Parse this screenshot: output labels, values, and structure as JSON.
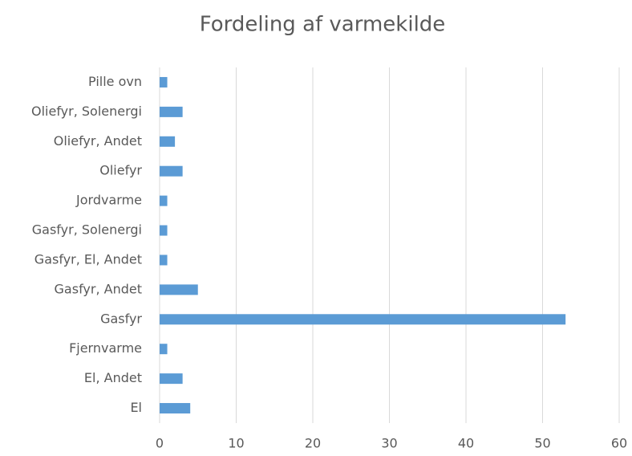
{
  "chart_data": {
    "type": "barh",
    "title": "Fordeling af varmekilde",
    "categories": [
      "Pille ovn",
      "Oliefyr, Solenergi",
      "Oliefyr, Andet",
      "Oliefyr",
      "Jordvarme",
      "Gasfyr, Solenergi",
      "Gasfyr, El, Andet",
      "Gasfyr, Andet",
      "Gasfyr",
      "Fjernvarme",
      "El, Andet",
      "El"
    ],
    "values": [
      1,
      3,
      2,
      3,
      1,
      1,
      1,
      5,
      53,
      1,
      3,
      4
    ],
    "color": "#5b9bd5",
    "xlim": [
      0,
      60
    ],
    "xticks": [
      0,
      10,
      20,
      30,
      40,
      50,
      60
    ],
    "grid": true
  }
}
